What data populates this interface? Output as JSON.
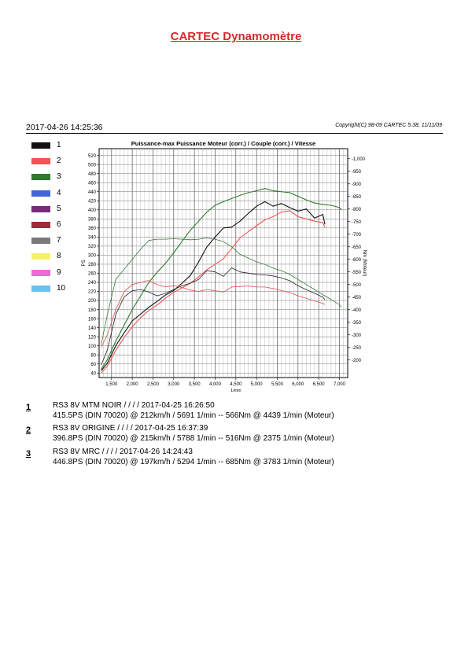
{
  "header": {
    "title": "CARTEC Dynamomètre",
    "timestamp": "2017-04-26 14:25:36",
    "copyright": "Copyright(C) 98-09 CARTEC 5.38, 11/11/09"
  },
  "legend": [
    {
      "label": "1",
      "color": "#111111"
    },
    {
      "label": "2",
      "color": "#f05656"
    },
    {
      "label": "3",
      "color": "#2e7a2e"
    },
    {
      "label": "4",
      "color": "#3f67d6"
    },
    {
      "label": "5",
      "color": "#7a2a7a"
    },
    {
      "label": "6",
      "color": "#9e2a3a"
    },
    {
      "label": "7",
      "color": "#7a7a7a"
    },
    {
      "label": "8",
      "color": "#f5f068"
    },
    {
      "label": "9",
      "color": "#ee6ad6"
    },
    {
      "label": "10",
      "color": "#6ac0ee"
    }
  ],
  "runs": [
    {
      "num": "1",
      "line1": "RS3 8V MTM NOIR /  /  /  / 2017-04-25 16:26:50",
      "line2": "415.5PS (DIN 70020) @ 212km/h / 5691 1/min -- 566Nm @ 4439 1/min (Moteur)"
    },
    {
      "num": "2",
      "line1": "RS3 8V ORIGINE /  /  /  / 2017-04-25 16:37:39",
      "line2": "396.8PS (DIN 70020) @ 215km/h / 5788 1/min -- 516Nm @ 2375 1/min (Moteur)"
    },
    {
      "num": "3",
      "line1": "RS3 8V MRC /  /  /  / 2017-04-26 14:24:43",
      "line2": "446.8PS (DIN 70020) @ 197km/h / 5294 1/min -- 685Nm @ 3783 1/min (Moteur)"
    }
  ],
  "chart_data": {
    "type": "line",
    "title": "Puissance-max Puissance Moteur (corr.) / Couple (corr.) / Vitesse",
    "xlabel": "1/min",
    "ylabel_left": "PS",
    "ylabel_right": "Nm (Moteur)",
    "xlim": [
      1200,
      7200
    ],
    "ylim_left": [
      30,
      535
    ],
    "ylim_right": [
      130,
      1040
    ],
    "x_ticks": [
      1500,
      2000,
      2500,
      3000,
      3500,
      4000,
      4500,
      5000,
      5500,
      6000,
      6500,
      7000
    ],
    "x_tick_labels": [
      "1,500",
      "2,000",
      "2,500",
      "3,000",
      "3,500",
      "4,000",
      "4,500",
      "5,000",
      "5,500",
      "6,000",
      "6,500",
      "7,000"
    ],
    "y_left_ticks": [
      40,
      60,
      80,
      100,
      120,
      140,
      160,
      180,
      200,
      220,
      240,
      260,
      280,
      300,
      320,
      340,
      360,
      380,
      400,
      420,
      440,
      460,
      480,
      500,
      520
    ],
    "y_right_ticks": [
      200,
      250,
      300,
      350,
      400,
      450,
      500,
      550,
      600,
      650,
      700,
      750,
      800,
      850,
      900,
      950,
      1000
    ],
    "y_right_tick_labels": [
      "200",
      "250",
      "300",
      "350",
      "400",
      "450",
      "500",
      "550",
      "600",
      "650",
      "700",
      "750",
      "800",
      "850",
      "900",
      "950",
      "1,000"
    ],
    "grid": true,
    "series": [
      {
        "name": "1",
        "kind": "power",
        "color": "#111111",
        "axis": "left",
        "x": [
          1250,
          1400,
          1600,
          1800,
          2000,
          2200,
          2400,
          2600,
          2800,
          3000,
          3200,
          3400,
          3600,
          3800,
          4000,
          4200,
          4400,
          4600,
          4800,
          5000,
          5200,
          5400,
          5600,
          5800,
          6000,
          6200,
          6400,
          6600,
          6650
        ],
        "y": [
          45,
          62,
          100,
          128,
          155,
          170,
          185,
          198,
          212,
          222,
          238,
          255,
          285,
          318,
          340,
          360,
          362,
          375,
          392,
          408,
          418,
          408,
          414,
          405,
          397,
          402,
          382,
          390,
          368
        ]
      },
      {
        "name": "2",
        "kind": "power",
        "color": "#f05656",
        "axis": "left",
        "x": [
          1250,
          1400,
          1600,
          1800,
          2000,
          2200,
          2400,
          2600,
          2800,
          3000,
          3200,
          3400,
          3600,
          3800,
          4000,
          4200,
          4400,
          4600,
          4800,
          5000,
          5200,
          5400,
          5600,
          5800,
          6000,
          6200,
          6400,
          6600,
          6650
        ],
        "y": [
          40,
          55,
          90,
          118,
          142,
          162,
          178,
          190,
          205,
          218,
          228,
          238,
          252,
          268,
          280,
          292,
          315,
          338,
          352,
          365,
          378,
          385,
          395,
          398,
          385,
          380,
          375,
          372,
          362
        ]
      },
      {
        "name": "3",
        "kind": "power",
        "color": "#2e7a2e",
        "axis": "left",
        "x": [
          1250,
          1400,
          1600,
          1800,
          2000,
          2200,
          2400,
          2600,
          2800,
          3000,
          3200,
          3400,
          3600,
          3800,
          4000,
          4200,
          4400,
          4600,
          4800,
          5000,
          5200,
          5400,
          5600,
          5800,
          6000,
          6200,
          6400,
          6600,
          6800,
          7000,
          7050
        ],
        "y": [
          48,
          70,
          110,
          145,
          180,
          210,
          240,
          262,
          282,
          305,
          330,
          355,
          375,
          395,
          410,
          418,
          425,
          432,
          438,
          442,
          447,
          442,
          440,
          438,
          430,
          422,
          415,
          412,
          410,
          405,
          400
        ]
      },
      {
        "name": "1",
        "kind": "torque",
        "color": "#111111",
        "axis": "right",
        "x": [
          1250,
          1400,
          1600,
          1800,
          2000,
          2200,
          2400,
          2600,
          2800,
          3000,
          3200,
          3400,
          3600,
          3800,
          4000,
          4200,
          4400,
          4600,
          4800,
          5000,
          5200,
          5400,
          5600,
          5800,
          6000,
          6200,
          6400,
          6600,
          6650
        ],
        "y": [
          180,
          240,
          380,
          450,
          475,
          480,
          470,
          455,
          465,
          480,
          495,
          505,
          520,
          555,
          550,
          532,
          566,
          550,
          545,
          540,
          538,
          534,
          526,
          515,
          495,
          480,
          465,
          450,
          440
        ]
      },
      {
        "name": "2",
        "kind": "torque",
        "color": "#f05656",
        "axis": "right",
        "x": [
          1250,
          1400,
          1600,
          1800,
          2000,
          2200,
          2375,
          2600,
          2800,
          3000,
          3200,
          3400,
          3600,
          3800,
          4000,
          4200,
          4400,
          4600,
          4800,
          5000,
          5200,
          5400,
          5600,
          5800,
          6000,
          6200,
          6400,
          6600,
          6650
        ],
        "y": [
          250,
          300,
          400,
          470,
          500,
          508,
          516,
          500,
          490,
          495,
          488,
          478,
          472,
          480,
          475,
          470,
          490,
          492,
          494,
          490,
          490,
          484,
          476,
          468,
          455,
          445,
          435,
          425,
          420
        ]
      },
      {
        "name": "3",
        "kind": "torque",
        "color": "#2e7a2e",
        "axis": "right",
        "x": [
          1250,
          1400,
          1600,
          1800,
          2000,
          2200,
          2400,
          2600,
          2800,
          3000,
          3200,
          3400,
          3600,
          3783,
          4000,
          4200,
          4400,
          4600,
          4800,
          5000,
          5200,
          5400,
          5600,
          5800,
          6000,
          6200,
          6400,
          6600,
          6800,
          7000,
          7050
        ],
        "y": [
          260,
          380,
          520,
          560,
          600,
          640,
          675,
          680,
          680,
          682,
          680,
          678,
          680,
          685,
          680,
          670,
          650,
          620,
          605,
          590,
          580,
          565,
          555,
          540,
          520,
          500,
          480,
          460,
          440,
          420,
          410
        ]
      }
    ]
  }
}
